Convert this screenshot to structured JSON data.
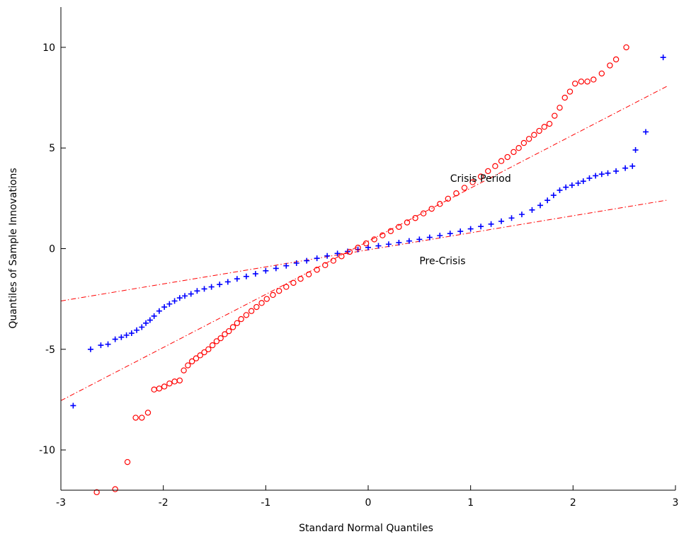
{
  "chart_data": {
    "type": "scatter",
    "title": "",
    "xlabel": "Standard Normal Quantiles",
    "ylabel": "Quantiles of Sample Innovations",
    "xlim": [
      -3,
      3
    ],
    "ylim": [
      -12,
      12
    ],
    "x_ticks": [
      "-3",
      "-2",
      "-1",
      "0",
      "1",
      "2",
      "3"
    ],
    "y_ticks": [
      "-10",
      "-5",
      "0",
      "5",
      "10"
    ],
    "grid": false,
    "legend": "none",
    "colors": {
      "pre_crisis": "#0000ff",
      "crisis": "#ff0000",
      "reference_line": "#ff0000",
      "axes": "#000000"
    },
    "annotations": [
      {
        "text": "Crisis Period",
        "x": 0.8,
        "y": 3.5
      },
      {
        "text": "Pre-Crisis",
        "x": 0.5,
        "y": -0.6
      }
    ],
    "series": [
      {
        "marker": "plus",
        "color": "#0000ff",
        "points": [
          [
            -2.88,
            -7.8
          ],
          [
            -2.71,
            -5.0
          ],
          [
            -2.61,
            -4.8
          ],
          [
            -2.54,
            -4.75
          ],
          [
            -2.47,
            -4.5
          ],
          [
            -2.41,
            -4.4
          ],
          [
            -2.36,
            -4.3
          ],
          [
            -2.31,
            -4.2
          ],
          [
            -2.26,
            -4.05
          ],
          [
            -2.21,
            -3.9
          ],
          [
            -2.17,
            -3.7
          ],
          [
            -2.13,
            -3.55
          ],
          [
            -2.09,
            -3.35
          ],
          [
            -2.04,
            -3.1
          ],
          [
            -1.99,
            -2.9
          ],
          [
            -1.94,
            -2.75
          ],
          [
            -1.89,
            -2.6
          ],
          [
            -1.84,
            -2.45
          ],
          [
            -1.79,
            -2.35
          ],
          [
            -1.73,
            -2.25
          ],
          [
            -1.67,
            -2.1
          ],
          [
            -1.6,
            -2.0
          ],
          [
            -1.53,
            -1.9
          ],
          [
            -1.45,
            -1.78
          ],
          [
            -1.37,
            -1.65
          ],
          [
            -1.28,
            -1.5
          ],
          [
            -1.19,
            -1.38
          ],
          [
            -1.1,
            -1.25
          ],
          [
            -1.0,
            -1.1
          ],
          [
            -0.9,
            -0.98
          ],
          [
            -0.8,
            -0.85
          ],
          [
            -0.7,
            -0.72
          ],
          [
            -0.6,
            -0.6
          ],
          [
            -0.5,
            -0.48
          ],
          [
            -0.4,
            -0.36
          ],
          [
            -0.3,
            -0.24
          ],
          [
            -0.2,
            -0.14
          ],
          [
            -0.1,
            -0.04
          ],
          [
            0.0,
            0.06
          ],
          [
            0.1,
            0.14
          ],
          [
            0.2,
            0.22
          ],
          [
            0.3,
            0.3
          ],
          [
            0.4,
            0.38
          ],
          [
            0.5,
            0.46
          ],
          [
            0.6,
            0.56
          ],
          [
            0.7,
            0.65
          ],
          [
            0.8,
            0.75
          ],
          [
            0.9,
            0.86
          ],
          [
            1.0,
            0.98
          ],
          [
            1.1,
            1.1
          ],
          [
            1.2,
            1.22
          ],
          [
            1.3,
            1.36
          ],
          [
            1.4,
            1.52
          ],
          [
            1.5,
            1.7
          ],
          [
            1.6,
            1.92
          ],
          [
            1.68,
            2.15
          ],
          [
            1.75,
            2.4
          ],
          [
            1.81,
            2.65
          ],
          [
            1.87,
            2.9
          ],
          [
            1.93,
            3.05
          ],
          [
            1.99,
            3.15
          ],
          [
            2.05,
            3.25
          ],
          [
            2.1,
            3.35
          ],
          [
            2.16,
            3.5
          ],
          [
            2.22,
            3.62
          ],
          [
            2.28,
            3.7
          ],
          [
            2.34,
            3.75
          ],
          [
            2.42,
            3.85
          ],
          [
            2.51,
            4.0
          ],
          [
            2.58,
            4.1
          ],
          [
            2.61,
            4.9
          ],
          [
            2.71,
            5.8
          ],
          [
            2.88,
            9.5
          ]
        ]
      },
      {
        "marker": "circle",
        "color": "#ff0000",
        "points": [
          [
            -2.65,
            -12.1
          ],
          [
            -2.47,
            -11.95
          ],
          [
            -2.35,
            -10.6
          ],
          [
            -2.27,
            -8.4
          ],
          [
            -2.21,
            -8.4
          ],
          [
            -2.15,
            -8.15
          ],
          [
            -2.09,
            -7.0
          ],
          [
            -2.04,
            -6.95
          ],
          [
            -1.99,
            -6.85
          ],
          [
            -1.94,
            -6.7
          ],
          [
            -1.89,
            -6.6
          ],
          [
            -1.84,
            -6.55
          ],
          [
            -1.8,
            -6.05
          ],
          [
            -1.76,
            -5.8
          ],
          [
            -1.72,
            -5.6
          ],
          [
            -1.68,
            -5.45
          ],
          [
            -1.64,
            -5.3
          ],
          [
            -1.6,
            -5.15
          ],
          [
            -1.56,
            -5.0
          ],
          [
            -1.52,
            -4.8
          ],
          [
            -1.48,
            -4.6
          ],
          [
            -1.44,
            -4.45
          ],
          [
            -1.4,
            -4.25
          ],
          [
            -1.36,
            -4.1
          ],
          [
            -1.32,
            -3.9
          ],
          [
            -1.28,
            -3.7
          ],
          [
            -1.24,
            -3.5
          ],
          [
            -1.19,
            -3.3
          ],
          [
            -1.14,
            -3.1
          ],
          [
            -1.09,
            -2.9
          ],
          [
            -1.04,
            -2.7
          ],
          [
            -0.99,
            -2.5
          ],
          [
            -0.93,
            -2.3
          ],
          [
            -0.87,
            -2.1
          ],
          [
            -0.8,
            -1.9
          ],
          [
            -0.73,
            -1.7
          ],
          [
            -0.66,
            -1.5
          ],
          [
            -0.58,
            -1.28
          ],
          [
            -0.5,
            -1.05
          ],
          [
            -0.42,
            -0.82
          ],
          [
            -0.34,
            -0.6
          ],
          [
            -0.26,
            -0.38
          ],
          [
            -0.18,
            -0.16
          ],
          [
            -0.1,
            0.05
          ],
          [
            -0.02,
            0.26
          ],
          [
            0.06,
            0.46
          ],
          [
            0.14,
            0.66
          ],
          [
            0.22,
            0.87
          ],
          [
            0.3,
            1.08
          ],
          [
            0.38,
            1.3
          ],
          [
            0.46,
            1.52
          ],
          [
            0.54,
            1.75
          ],
          [
            0.62,
            1.98
          ],
          [
            0.7,
            2.22
          ],
          [
            0.78,
            2.48
          ],
          [
            0.86,
            2.75
          ],
          [
            0.94,
            3.02
          ],
          [
            1.02,
            3.3
          ],
          [
            1.1,
            3.58
          ],
          [
            1.17,
            3.85
          ],
          [
            1.24,
            4.1
          ],
          [
            1.3,
            4.35
          ],
          [
            1.36,
            4.55
          ],
          [
            1.42,
            4.8
          ],
          [
            1.47,
            5.0
          ],
          [
            1.52,
            5.25
          ],
          [
            1.57,
            5.45
          ],
          [
            1.62,
            5.65
          ],
          [
            1.67,
            5.85
          ],
          [
            1.72,
            6.05
          ],
          [
            1.77,
            6.2
          ],
          [
            1.82,
            6.6
          ],
          [
            1.87,
            7.0
          ],
          [
            1.92,
            7.5
          ],
          [
            1.97,
            7.8
          ],
          [
            2.02,
            8.2
          ],
          [
            2.08,
            8.3
          ],
          [
            2.14,
            8.3
          ],
          [
            2.2,
            8.4
          ],
          [
            2.28,
            8.7
          ],
          [
            2.36,
            9.1
          ],
          [
            2.42,
            9.4
          ],
          [
            2.52,
            10.0
          ]
        ]
      }
    ],
    "reference_lines": [
      {
        "color": "#ff0000",
        "style": "dash-dot",
        "x": [
          -3,
          2.93
        ],
        "y": [
          -7.55,
          8.1
        ]
      },
      {
        "color": "#ff0000",
        "style": "dash-dot",
        "x": [
          -3,
          2.93
        ],
        "y": [
          -2.6,
          2.42
        ]
      }
    ]
  }
}
